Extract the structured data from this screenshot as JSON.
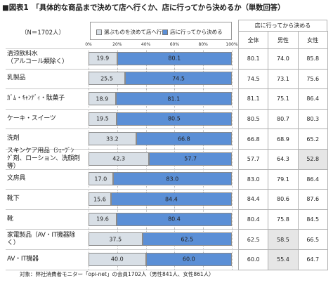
{
  "title": "■図表1　「具体的な商品まで決めて店へ行くか、店に行ってから決めるか（単数回答）",
  "n_label": "（N＝1702人）",
  "footnote": "対象：弊社消費者モニター「opi-net」の会員1702人（男性841人、女性861人）",
  "colors": {
    "decide_first": "#d8dfe6",
    "decide_in_store": "#5b8fd6",
    "highlight": "#e6e6e6"
  },
  "chart_data": {
    "type": "bar",
    "orientation": "horizontal-stacked-100",
    "ticks": [
      "0%",
      "20%",
      "40%",
      "60%",
      "80%",
      "100%"
    ],
    "xlim": [
      0,
      100
    ],
    "legend": [
      "選ぶものを決めて店へ行く",
      "店に行ってから決める"
    ],
    "categories": [
      [
        "清涼飲料水",
        "（アルコール類除く）"
      ],
      [
        "乳製品"
      ],
      [
        "ｶﾞﾑ・ｷｬﾝﾃﾞｨ・駄菓子"
      ],
      [
        "ケーキ・スイーツ"
      ],
      [
        "洗剤"
      ],
      [
        "スキンケア用品（ｼｪｰﾌﾞﾝ",
        "ｸﾞ剤、ローション、洗顔剤等）"
      ],
      [
        "文房具"
      ],
      [
        "靴下"
      ],
      [
        "靴"
      ],
      [
        "家電製品（AV・IT機器除",
        "く）"
      ],
      [
        "AV・IT機器"
      ]
    ],
    "series": [
      {
        "name": "選ぶものを決めて店へ行く",
        "values": [
          19.9,
          25.5,
          18.9,
          19.5,
          33.2,
          42.3,
          17.0,
          15.6,
          19.6,
          37.5,
          40.0
        ]
      },
      {
        "name": "店に行ってから決める",
        "values": [
          80.1,
          74.5,
          81.1,
          80.5,
          66.8,
          57.7,
          83.0,
          84.4,
          80.4,
          62.5,
          60.0
        ]
      }
    ]
  },
  "table": {
    "group_header": "店に行ってから決める",
    "columns": [
      "全体",
      "男性",
      "女性"
    ],
    "rows": [
      [
        "80.1",
        "74.0",
        "85.8"
      ],
      [
        "74.5",
        "73.1",
        "75.6"
      ],
      [
        "81.1",
        "75.1",
        "86.4"
      ],
      [
        "80.5",
        "80.7",
        "80.3"
      ],
      [
        "66.8",
        "68.9",
        "65.2"
      ],
      [
        "57.7",
        "64.3",
        "52.8"
      ],
      [
        "83.0",
        "79.1",
        "86.4"
      ],
      [
        "84.4",
        "80.6",
        "87.6"
      ],
      [
        "80.4",
        "75.8",
        "84.5"
      ],
      [
        "62.5",
        "58.5",
        "66.5"
      ],
      [
        "60.0",
        "55.4",
        "64.7"
      ]
    ],
    "highlighted": [
      [
        5,
        2
      ],
      [
        9,
        1
      ],
      [
        10,
        1
      ]
    ]
  }
}
